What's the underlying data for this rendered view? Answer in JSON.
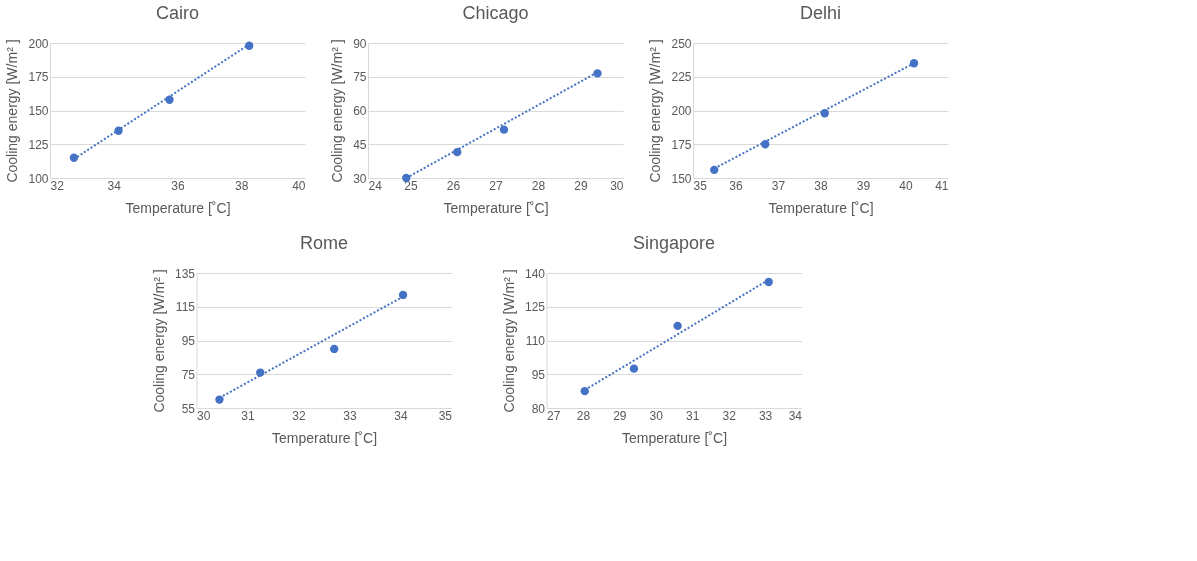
{
  "chart_data": [
    {
      "type": "scatter",
      "title": "Cairo",
      "xlabel": "Temperature [˚C]",
      "ylabel": "Cooling energy [W/m² ]",
      "xlim": [
        32,
        40
      ],
      "xticks": [
        32,
        34,
        36,
        38,
        40
      ],
      "ylim": [
        100,
        200
      ],
      "yticks": [
        100,
        125,
        150,
        175,
        200
      ],
      "grid": "y",
      "legend": false,
      "marker": "circle",
      "series": [
        {
          "color": "#4472c4",
          "x": [
            32.75,
            34.15,
            35.75,
            38.25
          ],
          "values": [
            115,
            135,
            158,
            198
          ]
        },
        {
          "type": "line",
          "color": "#4472c4",
          "line_style": "dotted",
          "marker": "none",
          "x": [
            32.75,
            38.25
          ],
          "values": [
            114,
            199
          ]
        }
      ]
    },
    {
      "type": "scatter",
      "title": "Chicago",
      "xlabel": "Temperature [˚C]",
      "ylabel": "Cooling energy [W/m² ]",
      "xlim": [
        24,
        30
      ],
      "xticks": [
        24,
        25,
        26,
        27,
        28,
        29,
        30
      ],
      "ylim": [
        30,
        90
      ],
      "yticks": [
        30,
        45,
        60,
        75,
        90
      ],
      "grid": "y",
      "legend": false,
      "marker": "circle",
      "series": [
        {
          "color": "#4472c4",
          "x": [
            24.9,
            26.1,
            27.2,
            29.4
          ],
          "values": [
            30,
            41.5,
            51.5,
            76.5
          ]
        },
        {
          "type": "line",
          "color": "#4472c4",
          "line_style": "dotted",
          "marker": "none",
          "x": [
            24.9,
            29.4
          ],
          "values": [
            30,
            77
          ]
        }
      ]
    },
    {
      "type": "scatter",
      "title": "Delhi",
      "xlabel": "Temperature [˚C]",
      "ylabel": "Cooling energy [W/m² ]",
      "xlim": [
        35,
        41
      ],
      "xticks": [
        35,
        36,
        37,
        38,
        39,
        40,
        41
      ],
      "ylim": [
        150,
        250
      ],
      "yticks": [
        150,
        175,
        200,
        225,
        250
      ],
      "grid": "y",
      "legend": false,
      "marker": "circle",
      "series": [
        {
          "color": "#4472c4",
          "x": [
            35.5,
            36.7,
            38.1,
            40.2
          ],
          "values": [
            156,
            175,
            198,
            235
          ]
        },
        {
          "type": "line",
          "color": "#4472c4",
          "line_style": "dotted",
          "marker": "none",
          "x": [
            35.5,
            40.2
          ],
          "values": [
            157,
            235
          ]
        }
      ]
    },
    {
      "type": "scatter",
      "title": "Rome",
      "xlabel": "Temperature [˚C]",
      "ylabel": "Cooling energy [W/m² ]",
      "xlim": [
        30,
        35
      ],
      "xticks": [
        30,
        31,
        32,
        33,
        34,
        35
      ],
      "ylim": [
        55,
        135
      ],
      "yticks": [
        55,
        75,
        95,
        115,
        135
      ],
      "grid": "y",
      "legend": false,
      "marker": "circle",
      "series": [
        {
          "color": "#4472c4",
          "x": [
            30.45,
            31.25,
            32.7,
            34.05
          ],
          "values": [
            60,
            76,
            90,
            122
          ]
        },
        {
          "type": "line",
          "color": "#4472c4",
          "line_style": "dotted",
          "marker": "none",
          "x": [
            30.45,
            34.05
          ],
          "values": [
            61,
            121
          ]
        }
      ]
    },
    {
      "type": "scatter",
      "title": "Singapore",
      "xlabel": "Temperature [˚C]",
      "ylabel": "Cooling energy [W/m² ]",
      "xlim": [
        27,
        34
      ],
      "xticks": [
        27,
        28,
        29,
        30,
        31,
        32,
        33,
        34
      ],
      "ylim": [
        80,
        140
      ],
      "yticks": [
        80,
        95,
        110,
        125,
        140
      ],
      "grid": "y",
      "legend": false,
      "marker": "circle",
      "series": [
        {
          "color": "#4472c4",
          "x": [
            28.05,
            29.4,
            30.6,
            33.1
          ],
          "values": [
            87.5,
            97.5,
            116.5,
            136
          ]
        },
        {
          "type": "line",
          "color": "#4472c4",
          "line_style": "dotted",
          "marker": "none",
          "x": [
            28.05,
            33.1
          ],
          "values": [
            88,
            137
          ]
        }
      ]
    }
  ]
}
